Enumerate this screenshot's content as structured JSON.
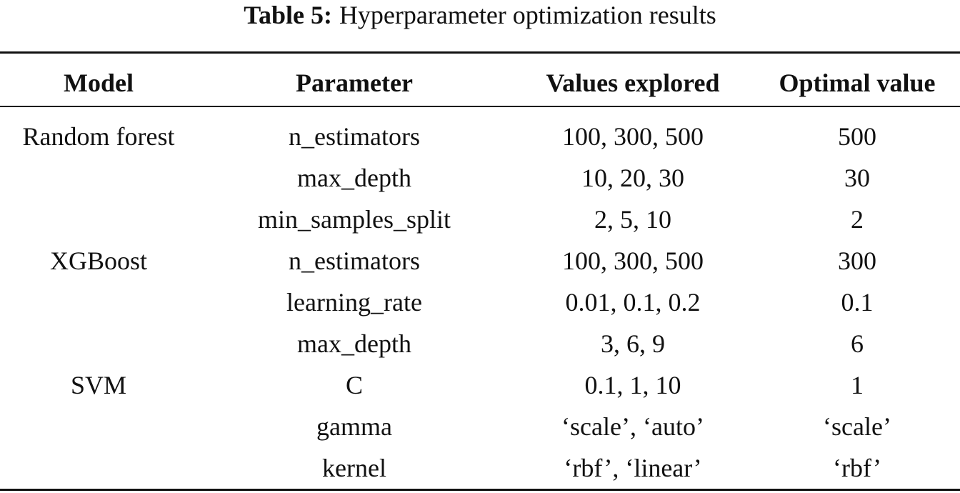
{
  "caption": {
    "label": "Table 5:",
    "text": "Hyperparameter optimization results"
  },
  "table": {
    "headers": [
      "Model",
      "Parameter",
      "Values explored",
      "Optimal value"
    ],
    "rows": [
      [
        "Random forest",
        "n_estimators",
        "100, 300, 500",
        "500"
      ],
      [
        "",
        "max_depth",
        "10, 20, 30",
        "30"
      ],
      [
        "",
        "min_samples_split",
        "2, 5, 10",
        "2"
      ],
      [
        "XGBoost",
        "n_estimators",
        "100, 300, 500",
        "300"
      ],
      [
        "",
        "learning_rate",
        "0.01, 0.1, 0.2",
        "0.1"
      ],
      [
        "",
        "max_depth",
        "3, 6, 9",
        "6"
      ],
      [
        "SVM",
        "C",
        "0.1, 1, 10",
        "1"
      ],
      [
        "",
        "gamma",
        "‘scale’, ‘auto’",
        "‘scale’"
      ],
      [
        "",
        "kernel",
        "‘rbf’, ‘linear’",
        "‘rbf’"
      ]
    ]
  }
}
